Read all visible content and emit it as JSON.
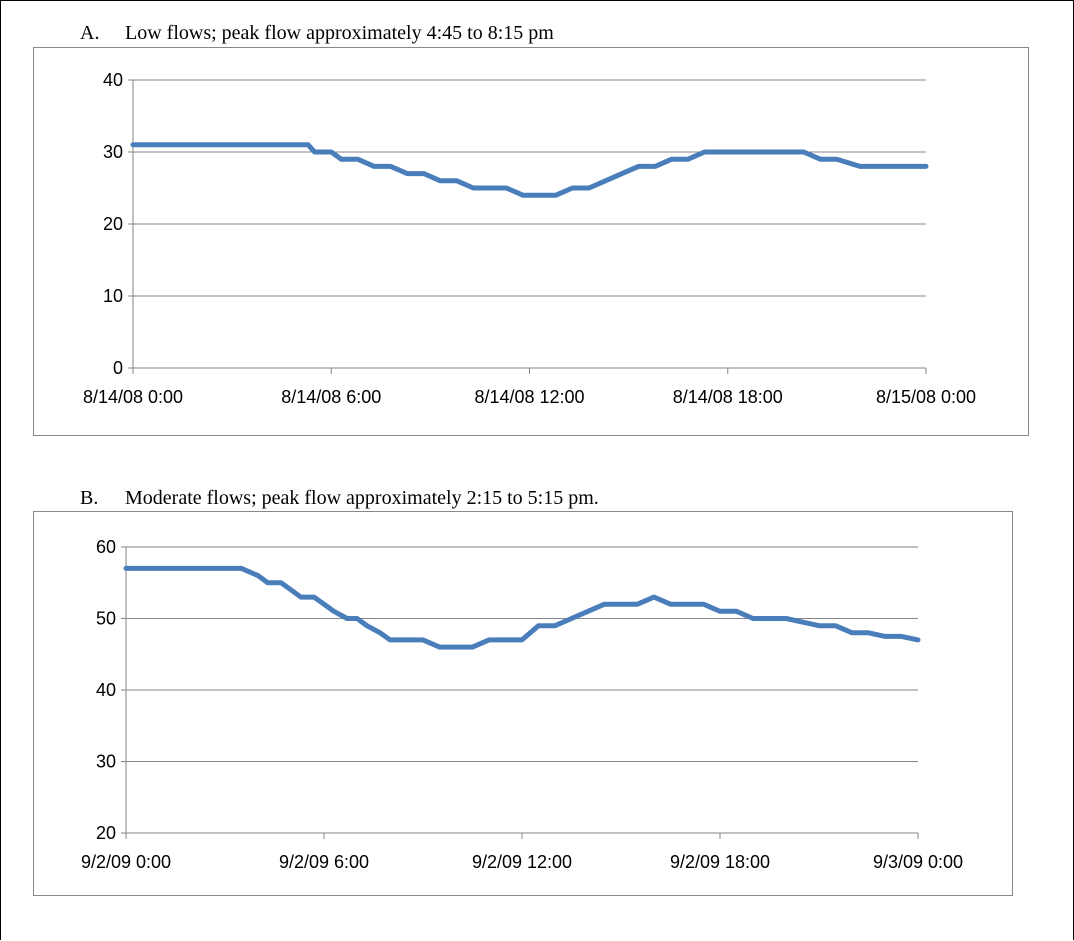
{
  "chart_data": [
    {
      "type": "line",
      "title": "A. Low flows; peak flow approximately 4:45 to 8:15 pm",
      "title_letter": "A.",
      "title_text": "Low flows; peak flow approximately 4:45 to 8:15 pm",
      "xlabel": "",
      "ylabel": "",
      "ylim": [
        0,
        40
      ],
      "yticks": [
        "0",
        "10",
        "20",
        "30",
        "40"
      ],
      "xticks": [
        "8/14/08 0:00",
        "8/14/08 6:00",
        "8/14/08 12:00",
        "8/14/08 18:00",
        "8/15/08 0:00"
      ],
      "grid": true,
      "line_color": "#4a7ebb",
      "x_hours": [
        0,
        1,
        2,
        3,
        4,
        5,
        5.3,
        5.5,
        6.0,
        6.3,
        6.8,
        7.3,
        7.8,
        8.3,
        8.8,
        9.3,
        9.8,
        10.3,
        10.8,
        11.3,
        11.8,
        12.3,
        12.8,
        13.3,
        13.8,
        14.3,
        14.8,
        15.3,
        15.8,
        16.3,
        16.8,
        17.3,
        17.8,
        18.3,
        19.0,
        19.8,
        20.3,
        20.8,
        21.3,
        22.0,
        23.0,
        24.0
      ],
      "values": [
        31,
        31,
        31,
        31,
        31,
        31,
        31,
        30,
        30,
        29,
        29,
        28,
        28,
        27,
        27,
        26,
        26,
        25,
        25,
        25,
        24,
        24,
        24,
        25,
        25,
        26,
        27,
        28,
        28,
        29,
        29,
        30,
        30,
        30,
        30,
        30,
        30,
        29,
        29,
        28,
        28,
        28
      ]
    },
    {
      "type": "line",
      "title": "B. Moderate flows; peak flow approximately 2:15 to 5:15 pm.",
      "title_letter": "B.",
      "title_text": "Moderate flows; peak flow approximately 2:15 to 5:15 pm.",
      "xlabel": "",
      "ylabel": "",
      "ylim": [
        20,
        60
      ],
      "yticks": [
        "20",
        "30",
        "40",
        "50",
        "60"
      ],
      "xticks": [
        "9/2/09 0:00",
        "9/2/09 6:00",
        "9/2/09 12:00",
        "9/2/09 18:00",
        "9/3/09 0:00"
      ],
      "grid": true,
      "line_color": "#4a7ebb",
      "x_hours": [
        0,
        1,
        2,
        3,
        3.5,
        4.0,
        4.3,
        4.7,
        5.0,
        5.3,
        5.7,
        6.0,
        6.3,
        6.7,
        7.0,
        7.3,
        7.7,
        8.0,
        8.5,
        9.0,
        9.5,
        10.0,
        10.5,
        11.0,
        11.5,
        12.0,
        12.5,
        13.0,
        13.5,
        14.0,
        14.5,
        15.0,
        15.5,
        16.0,
        16.5,
        17.0,
        17.5,
        18.0,
        18.5,
        19.0,
        19.5,
        20.0,
        20.5,
        21.0,
        21.5,
        22.0,
        22.5,
        23.0,
        23.5,
        24.0
      ],
      "values": [
        57,
        57,
        57,
        57,
        57,
        56,
        55,
        55,
        54,
        53,
        53,
        52,
        51,
        50,
        50,
        49,
        48,
        47,
        47,
        47,
        46,
        46,
        46,
        47,
        47,
        47,
        49,
        49,
        50,
        51,
        52,
        52,
        52,
        53,
        52,
        52,
        52,
        51,
        51,
        50,
        50,
        50,
        49.5,
        49,
        49,
        48,
        48,
        47.5,
        47.5,
        47
      ]
    }
  ]
}
